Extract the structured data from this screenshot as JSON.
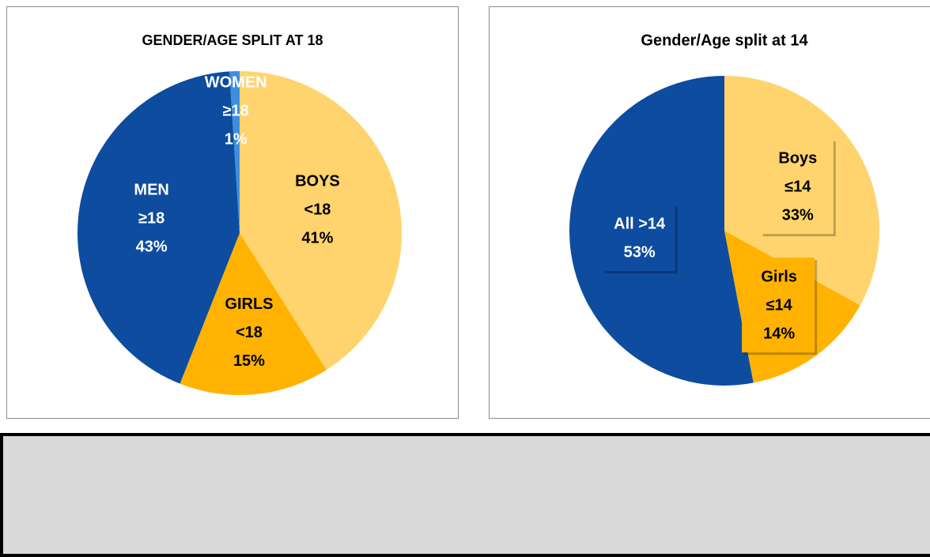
{
  "chart_data": [
    {
      "type": "pie",
      "title": "GENDER/AGE SPLIT AT 18",
      "categories": [
        "BOYS",
        "GIRLS",
        "MEN",
        "WOMEN"
      ],
      "groups": [
        "<18",
        "<18",
        "≥18",
        "≥18"
      ],
      "values": [
        41,
        15,
        43,
        1
      ],
      "value_labels": [
        "41%",
        "15%",
        "43%",
        "1%"
      ],
      "colors": [
        "#FFD46E",
        "#FFB300",
        "#0D4C9E",
        "#3D8EE0"
      ],
      "label_colors": [
        "#000000",
        "#000000",
        "#FFFFFF",
        "#FFFFFF"
      ]
    },
    {
      "type": "pie",
      "title": "Gender/Age split at 14",
      "categories": [
        "Boys",
        "Girls",
        "All >14"
      ],
      "groups": [
        "≤14",
        "≤14",
        null
      ],
      "values": [
        33,
        14,
        53
      ],
      "value_labels": [
        "33%",
        "14%",
        "53%"
      ],
      "colors": [
        "#FFD46E",
        "#FFB300",
        "#0D4C9E"
      ],
      "label_colors": [
        "#000000",
        "#000000",
        "#FFFFFF"
      ]
    }
  ]
}
